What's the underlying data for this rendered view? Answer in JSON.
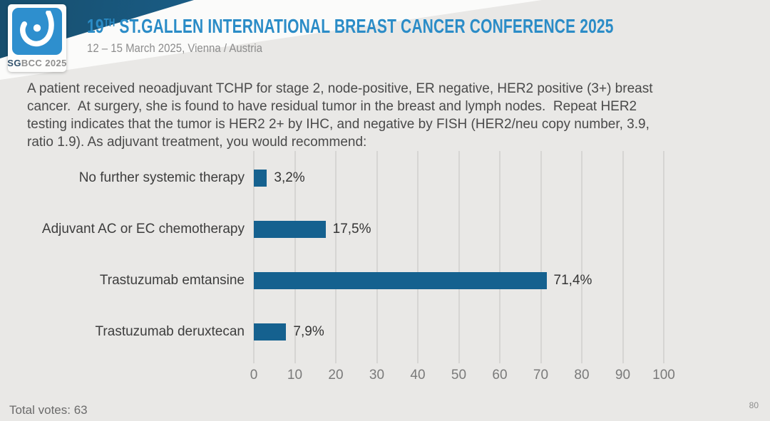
{
  "header": {
    "logo": {
      "mark": "sgbcc-breast-glyph",
      "caption_bold": "SG",
      "caption_rest": "BCC 2025"
    },
    "title_num": "19",
    "title_sup": "TH",
    "title_rest": " ST.GALLEN INTERNATIONAL BREAST CANCER CONFERENCE 2025",
    "subtitle": "12 – 15 March 2025, Vienna / Austria"
  },
  "question_lines": [
    "A patient received neoadjuvant TCHP for stage 2, node-positive, ER negative, HER2 positive (3+) breast",
    "cancer.  At surgery, she is found to have residual tumor in the breast and lymph nodes.  Repeat HER2",
    "testing indicates that the tumor is HER2 2+ by IHC, and negative by FISH (HER2/neu copy number, 3.9,",
    "ratio 1.9). As adjuvant treatment, you would recommend:"
  ],
  "chart_data": {
    "type": "bar",
    "orientation": "horizontal",
    "categories": [
      "No further systemic therapy",
      "Adjuvant AC or EC chemotherapy",
      "Trastuzumab emtansine",
      "Trastuzumab deruxtecan"
    ],
    "values": [
      3.2,
      17.5,
      71.4,
      7.9
    ],
    "value_labels": [
      "3,2%",
      "17,5%",
      "71,4%",
      "7,9%"
    ],
    "xlim": [
      0,
      100
    ],
    "x_ticks": [
      0,
      10,
      20,
      30,
      40,
      50,
      60,
      70,
      80,
      90,
      100
    ],
    "grid": true,
    "legend": "none",
    "bar_color": "#15618f"
  },
  "footer": {
    "total_votes": "Total votes: 63",
    "page_number": "80"
  },
  "colors": {
    "background": "#e9e8e6",
    "accent_blue": "#2b8cc7",
    "logo_blue": "#2e8fce",
    "band_blue_dark": "#174e6d",
    "bar_blue": "#15618f",
    "text_dark": "#4a4a4a",
    "text_gray": "#8d8d8d"
  }
}
